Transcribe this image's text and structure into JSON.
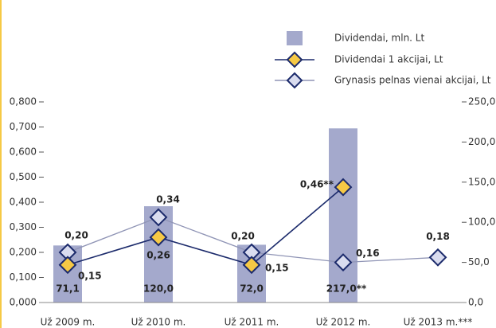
{
  "chart_data": {
    "type": "bar",
    "categories": [
      "Už 2009 m.",
      "Už 2010 m.",
      "Už 2011 m.",
      "Už 2012 m.",
      "Už 2013 m.***"
    ],
    "series": [
      {
        "name": "Dividendai, mln. Lt",
        "type": "bar",
        "axis": "y2",
        "color": "#a4a9cc",
        "values": [
          71.1,
          120.0,
          72.0,
          217.0,
          null
        ],
        "value_labels": [
          "71,1",
          "120,0",
          "72,0",
          "217,0**",
          null
        ]
      },
      {
        "name": "Dividendai 1 akcijai, Lt",
        "type": "line",
        "color": "#1b2a6b",
        "marker_color": "#f6c945",
        "values": [
          0.15,
          0.26,
          0.15,
          0.46,
          null
        ],
        "value_labels": [
          "0,15",
          "0,26",
          "0,15",
          "0,46**",
          null
        ]
      },
      {
        "name": "Grynasis pelnas vienai akcijai, Lt",
        "type": "line",
        "color": "#8f94b5",
        "marker_color": "#d9dcef",
        "values": [
          0.2,
          0.34,
          0.2,
          0.16,
          0.18
        ],
        "value_labels": [
          "0,20",
          "0,34",
          "0,20",
          "0,16",
          "0,18"
        ]
      }
    ],
    "ylim": [
      0,
      0.8
    ],
    "yticks": [
      {
        "value": 0,
        "label": "0,000"
      },
      {
        "value": 0.1,
        "label": "0,100"
      },
      {
        "value": 0.2,
        "label": "0,200"
      },
      {
        "value": 0.3,
        "label": "0,300"
      },
      {
        "value": 0.4,
        "label": "0,400"
      },
      {
        "value": 0.5,
        "label": "0,500"
      },
      {
        "value": 0.6,
        "label": "0,600"
      },
      {
        "value": 0.7,
        "label": "0,700"
      },
      {
        "value": 0.8,
        "label": "0,800"
      }
    ],
    "y2lim": [
      0,
      250
    ],
    "y2ticks": [
      {
        "value": 0,
        "label": "0,0"
      },
      {
        "value": 50,
        "label": "50,0"
      },
      {
        "value": 100,
        "label": "100,0"
      },
      {
        "value": 150,
        "label": "150,0"
      },
      {
        "value": 200,
        "label": "200,0"
      },
      {
        "value": 250,
        "label": "250,0"
      }
    ],
    "legend": "top-right"
  }
}
